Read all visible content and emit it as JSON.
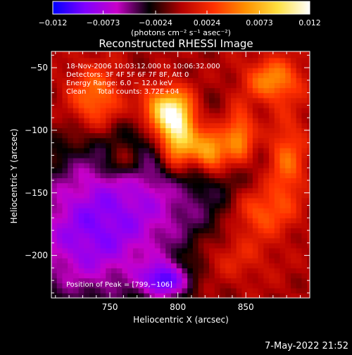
{
  "chart_data": {
    "type": "heatmap",
    "title": "Reconstructed RHESSI Image",
    "xlabel": "Heliocentric X (arcsec)",
    "ylabel": "Heliocentric Y (arcsec)",
    "xlim": [
      707,
      897
    ],
    "ylim": [
      -234,
      -37
    ],
    "x_ticks": [
      750,
      800,
      850
    ],
    "y_ticks": [
      -50,
      -100,
      -150,
      -200
    ],
    "colorbar": {
      "range": [
        -0.012,
        0.012
      ],
      "tick_values": [
        -0.012,
        -0.0073,
        -0.0024,
        0.0024,
        0.0073,
        0.012
      ],
      "tick_labels": [
        "−0.012",
        "−0.0073",
        "−0.0024",
        "0.0024",
        "0.0073",
        "0.012"
      ],
      "units_label": "(photons cm⁻² s⁻¹ asec⁻²)",
      "colors": [
        "#0000ff",
        "#8000ff",
        "#c800c8",
        "#000000",
        "#b40000",
        "#ff3000",
        "#ff9000",
        "#ffe040",
        "#ffffff"
      ]
    },
    "annotations": [
      "18-Nov-2006 10:03:12.000 to 10:06:32.000",
      "Detectors: 3F 4F 5F 6F 7F 8F, Att 0",
      "Energy Range: 6.0 − 12.0 keV",
      "Clean     Total counts: 3.72E+04"
    ],
    "peak_annotation": "Position of Peak = [799,−106]",
    "peak_position": [
      799,
      -106
    ],
    "sources": [
      {
        "x": 800,
        "y": -103,
        "sx": 10,
        "sy": 20,
        "amp": 0.0125
      },
      {
        "x": 788,
        "y": -83,
        "sx": 12,
        "sy": 12,
        "amp": 0.008
      },
      {
        "x": 824,
        "y": -116,
        "sx": 9,
        "sy": 12,
        "amp": 0.0095
      },
      {
        "x": 845,
        "y": -105,
        "sx": 8,
        "sy": 16,
        "amp": 0.007
      },
      {
        "x": 740,
        "y": -75,
        "sx": 14,
        "sy": 18,
        "amp": 0.006
      },
      {
        "x": 760,
        "y": -125,
        "sx": 10,
        "sy": 10,
        "amp": 0.004
      },
      {
        "x": 870,
        "y": -60,
        "sx": 14,
        "sy": 12,
        "amp": 0.006
      },
      {
        "x": 880,
        "y": -125,
        "sx": 10,
        "sy": 25,
        "amp": 0.005
      },
      {
        "x": 860,
        "y": -165,
        "sx": 15,
        "sy": 14,
        "amp": 0.005
      },
      {
        "x": 840,
        "y": -200,
        "sx": 20,
        "sy": 15,
        "amp": 0.003
      },
      {
        "x": 780,
        "y": -150,
        "sx": 50,
        "sy": 45,
        "amp": -0.0055
      },
      {
        "x": 730,
        "y": -190,
        "sx": 35,
        "sy": 40,
        "amp": -0.006
      },
      {
        "x": 790,
        "y": -220,
        "sx": 12,
        "sy": 10,
        "amp": -0.008
      }
    ]
  },
  "footer": {
    "timestamp": "7-May-2022 21:52"
  }
}
